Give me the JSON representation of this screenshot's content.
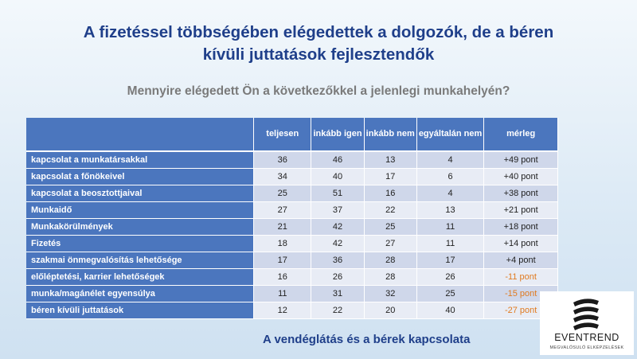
{
  "title_line1": "A fizetéssel többségében elégedettek a dolgozók, de a béren",
  "title_line2": "kívüli juttatások fejlesztendők",
  "subtitle": "Mennyire elégedett Ön a következőkkel a jelenlegi munkahelyén?",
  "table": {
    "headers": [
      "teljesen",
      "inkább igen",
      "inkább nem",
      "egyáltalán nem",
      "mérleg"
    ],
    "rows": [
      {
        "label": "kapcsolat a munkatársakkal",
        "values": [
          "36",
          "46",
          "13",
          "4",
          "+49 pont"
        ]
      },
      {
        "label": "kapcsolat a főnökeivel",
        "values": [
          "34",
          "40",
          "17",
          "6",
          "+40 pont"
        ]
      },
      {
        "label": "kapcsolat a beosztottjaival",
        "values": [
          "25",
          "51",
          "16",
          "4",
          "+38 pont"
        ]
      },
      {
        "label": "Munkaidő",
        "values": [
          "27",
          "37",
          "22",
          "13",
          "+21 pont"
        ]
      },
      {
        "label": "Munkakörülmények",
        "values": [
          "21",
          "42",
          "25",
          "11",
          "+18 pont"
        ]
      },
      {
        "label": "Fizetés",
        "values": [
          "18",
          "42",
          "27",
          "11",
          "+14 pont"
        ]
      },
      {
        "label": "szakmai önmegvalósítás lehetősége",
        "values": [
          "17",
          "36",
          "28",
          "17",
          "+4 pont"
        ]
      },
      {
        "label": "előléptetési, karrier lehetőségek",
        "values": [
          "16",
          "26",
          "28",
          "26",
          "-11 pont"
        ]
      },
      {
        "label": "munka/magánélet egyensúlya",
        "values": [
          "11",
          "31",
          "32",
          "25",
          "-15 pont"
        ]
      },
      {
        "label": "béren kívüli juttatások",
        "values": [
          "12",
          "22",
          "20",
          "40",
          "-27 pont"
        ]
      }
    ]
  },
  "footer": "A vendéglátás és a bérek kapcsolata",
  "logo": {
    "brand": "EVENTREND",
    "tagline": "MEGVALÓSULÓ ELKÉPZELÉSEK"
  },
  "colors": {
    "header_blue": "#4b76be",
    "title_blue": "#1f3f8a",
    "negative_orange": "#e07a1f"
  }
}
